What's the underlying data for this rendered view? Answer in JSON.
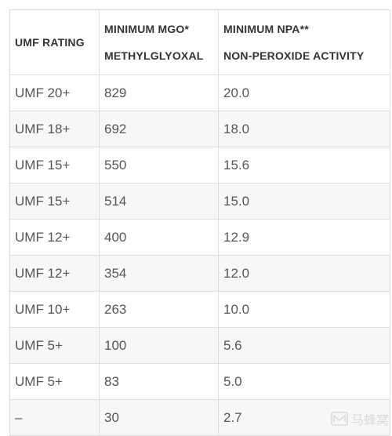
{
  "table": {
    "headers": [
      {
        "lines": [
          "UMF RATING"
        ]
      },
      {
        "lines": [
          "MINIMUM MGO*",
          "METHYLGLYOXAL"
        ]
      },
      {
        "lines": [
          "MINIMUM NPA**",
          "NON-PEROXIDE ACTIVITY"
        ]
      }
    ],
    "rows": [
      [
        "UMF 20+",
        "829",
        "20.0"
      ],
      [
        "UMF 18+",
        "692",
        "18.0"
      ],
      [
        "UMF 15+",
        "550",
        "15.6"
      ],
      [
        "UMF 15+",
        "514",
        "15.0"
      ],
      [
        "UMF 12+",
        "400",
        "12.9"
      ],
      [
        "UMF 12+",
        "354",
        "12.0"
      ],
      [
        "UMF 10+",
        "263",
        "10.0"
      ],
      [
        "UMF 5+",
        "100",
        "5.6"
      ],
      [
        "UMF 5+",
        "83",
        "5.0"
      ],
      [
        "–",
        "30",
        "2.7"
      ]
    ]
  },
  "watermark": {
    "text": "马蜂窝",
    "icon": "mafengwo-logo-icon"
  }
}
